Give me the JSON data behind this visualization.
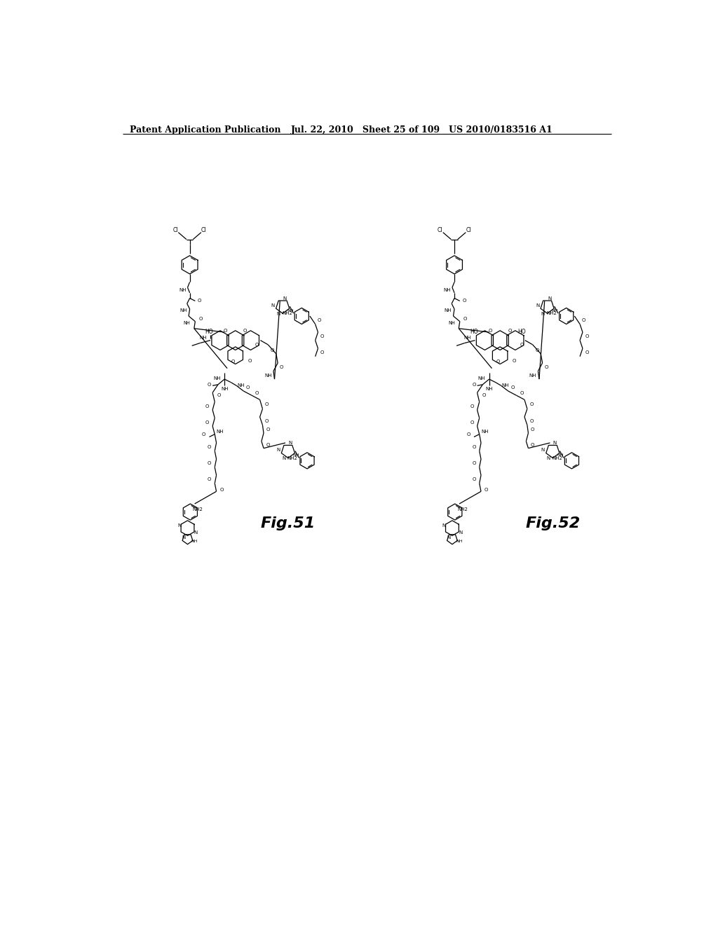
{
  "background_color": "#ffffff",
  "header_left": "Patent Application Publication",
  "header_center": "Jul. 22, 2010   Sheet 25 of 109",
  "header_right": "US 2010/0183516 A1",
  "fig51_label": "Fig.51",
  "fig52_label": "Fig.52",
  "header_fontsize": 9,
  "fig_label_fontsize": 16,
  "line_color": "#000000",
  "text_color": "#000000"
}
